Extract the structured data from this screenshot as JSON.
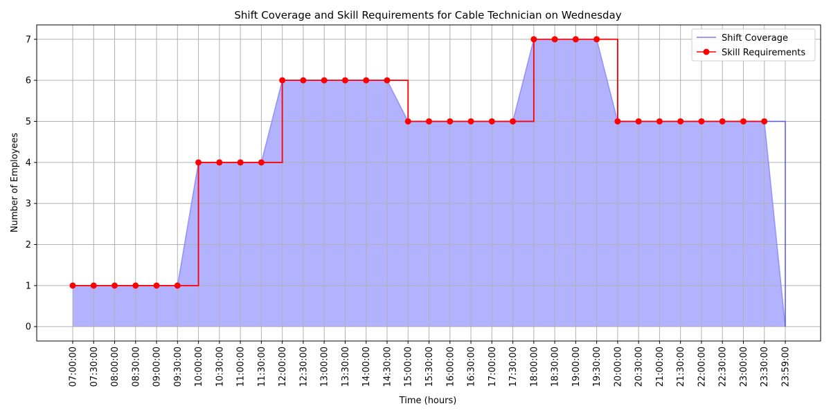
{
  "chart_data": {
    "type": "line",
    "title": "Shift Coverage and Skill Requirements for Cable Technician on Wednesday",
    "xlabel": "Time (hours)",
    "ylabel": "Number of Employees",
    "ylim": [
      -0.35,
      7.35
    ],
    "yticks": [
      0,
      1,
      2,
      3,
      4,
      5,
      6,
      7
    ],
    "grid": true,
    "legend_position": "top-right",
    "categories": [
      "07:00:00",
      "07:30:00",
      "08:00:00",
      "08:30:00",
      "09:00:00",
      "09:30:00",
      "10:00:00",
      "10:30:00",
      "11:00:00",
      "11:30:00",
      "12:00:00",
      "12:30:00",
      "13:00:00",
      "13:30:00",
      "14:00:00",
      "14:30:00",
      "15:00:00",
      "15:30:00",
      "16:00:00",
      "16:30:00",
      "17:00:00",
      "17:30:00",
      "18:00:00",
      "18:30:00",
      "19:00:00",
      "19:30:00",
      "20:00:00",
      "20:30:00",
      "21:00:00",
      "21:30:00",
      "22:00:00",
      "22:30:00",
      "23:00:00",
      "23:30:00",
      "23:59:00"
    ],
    "series": [
      {
        "name": "Shift Coverage",
        "color": "#7b7bff",
        "style": "step",
        "values": [
          1,
          1,
          1,
          1,
          1,
          1,
          4,
          4,
          4,
          4,
          6,
          6,
          6,
          6,
          6,
          6,
          5,
          5,
          5,
          5,
          5,
          5,
          7,
          7,
          7,
          7,
          5,
          5,
          5,
          5,
          5,
          5,
          5,
          5,
          0
        ]
      },
      {
        "name": "Skill Requirements",
        "color": "#ff0000",
        "style": "step-markers",
        "values": [
          1,
          1,
          1,
          1,
          1,
          1,
          4,
          4,
          4,
          4,
          6,
          6,
          6,
          6,
          6,
          6,
          5,
          5,
          5,
          5,
          5,
          5,
          7,
          7,
          7,
          7,
          5,
          5,
          5,
          5,
          5,
          5,
          5,
          5,
          null
        ]
      }
    ],
    "fill_color": "#b2b2ff"
  }
}
